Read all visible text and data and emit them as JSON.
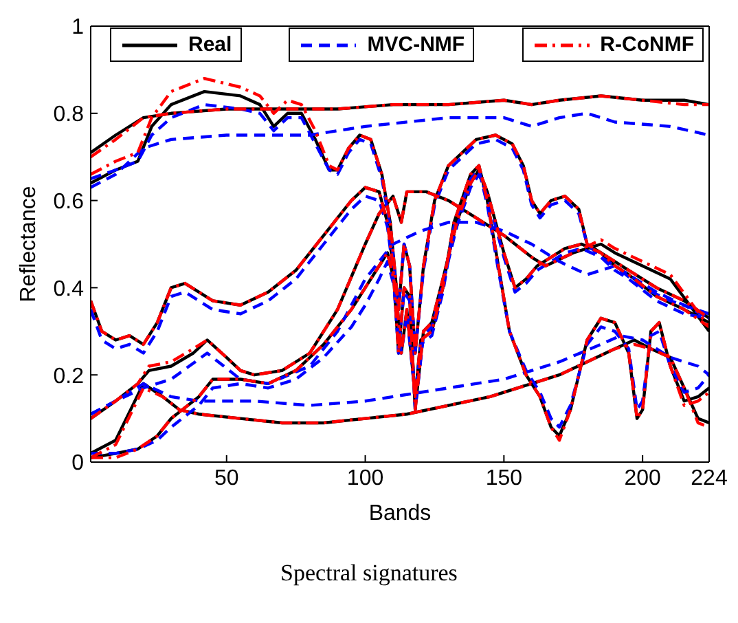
{
  "chart_data": {
    "type": "line",
    "title": "Spectral signatures",
    "xlabel": "Bands",
    "ylabel": "Reflectance",
    "xlim": [
      1,
      224
    ],
    "xticks": [
      50,
      100,
      150,
      200,
      224
    ],
    "ylim": [
      0,
      1
    ],
    "yticks": [
      0,
      0.2,
      0.4,
      0.6,
      0.8,
      1
    ],
    "grid": false,
    "legend": "top",
    "marker": "none",
    "series": [
      {
        "name": "Real",
        "color": "#000000",
        "line_style": "solid",
        "x": [
          1,
          10,
          20,
          30,
          50,
          70,
          90,
          110,
          130,
          150,
          160,
          170,
          185,
          200,
          215,
          224
        ],
        "values": [
          0.71,
          0.75,
          0.79,
          0.8,
          0.81,
          0.81,
          0.81,
          0.82,
          0.82,
          0.83,
          0.82,
          0.83,
          0.84,
          0.83,
          0.83,
          0.82
        ]
      },
      {
        "color": "#000000",
        "line_style": "solid",
        "x": [
          1,
          10,
          18,
          23,
          30,
          42,
          55,
          62,
          67,
          72,
          77,
          82,
          87,
          90,
          94,
          98,
          102,
          106,
          109,
          112,
          114,
          116,
          118,
          121,
          125,
          130,
          140,
          147,
          153,
          157,
          160,
          163,
          167,
          172,
          177,
          180,
          185,
          195,
          205,
          215,
          224
        ],
        "values": [
          0.64,
          0.67,
          0.69,
          0.77,
          0.82,
          0.85,
          0.84,
          0.82,
          0.77,
          0.8,
          0.8,
          0.74,
          0.67,
          0.67,
          0.72,
          0.75,
          0.74,
          0.66,
          0.55,
          0.35,
          0.5,
          0.45,
          0.25,
          0.45,
          0.6,
          0.68,
          0.74,
          0.75,
          0.73,
          0.68,
          0.6,
          0.57,
          0.6,
          0.61,
          0.58,
          0.5,
          0.48,
          0.44,
          0.4,
          0.37,
          0.33
        ]
      },
      {
        "color": "#000000",
        "line_style": "solid",
        "x": [
          1,
          5,
          10,
          15,
          20,
          25,
          30,
          35,
          45,
          55,
          65,
          75,
          85,
          95,
          100,
          105,
          108,
          110,
          112,
          114,
          116,
          118,
          121,
          124,
          128,
          133,
          138,
          141,
          144,
          150,
          154,
          158,
          162,
          167,
          172,
          178,
          185,
          190,
          195,
          205,
          215,
          224
        ],
        "values": [
          0.37,
          0.3,
          0.28,
          0.29,
          0.27,
          0.32,
          0.4,
          0.41,
          0.37,
          0.36,
          0.39,
          0.44,
          0.52,
          0.6,
          0.63,
          0.62,
          0.55,
          0.45,
          0.25,
          0.4,
          0.38,
          0.12,
          0.3,
          0.32,
          0.42,
          0.55,
          0.64,
          0.67,
          0.62,
          0.48,
          0.4,
          0.42,
          0.45,
          0.47,
          0.49,
          0.5,
          0.48,
          0.45,
          0.43,
          0.38,
          0.35,
          0.32
        ]
      },
      {
        "color": "#000000",
        "line_style": "solid",
        "x": [
          1,
          10,
          18,
          22,
          30,
          38,
          43,
          50,
          55,
          60,
          70,
          80,
          90,
          100,
          105,
          110,
          113,
          115,
          118,
          122,
          130,
          140,
          150,
          160,
          165,
          175,
          185,
          190,
          200,
          210,
          224
        ],
        "values": [
          0.1,
          0.14,
          0.18,
          0.21,
          0.22,
          0.25,
          0.28,
          0.24,
          0.21,
          0.2,
          0.21,
          0.25,
          0.35,
          0.5,
          0.57,
          0.61,
          0.55,
          0.62,
          0.62,
          0.62,
          0.6,
          0.56,
          0.52,
          0.47,
          0.45,
          0.48,
          0.5,
          0.48,
          0.45,
          0.42,
          0.3
        ]
      },
      {
        "color": "#000000",
        "line_style": "solid",
        "x": [
          1,
          10,
          18,
          25,
          30,
          40,
          45,
          55,
          65,
          75,
          85,
          95,
          100,
          105,
          108,
          111,
          113,
          115,
          118,
          120,
          124,
          128,
          132,
          138,
          141,
          144,
          148,
          152,
          158,
          163,
          167,
          170,
          174,
          180,
          185,
          190,
          195,
          198,
          200,
          203,
          206,
          210,
          215,
          220,
          224
        ],
        "values": [
          0.01,
          0.02,
          0.03,
          0.06,
          0.1,
          0.15,
          0.19,
          0.19,
          0.18,
          0.21,
          0.27,
          0.35,
          0.4,
          0.45,
          0.48,
          0.4,
          0.25,
          0.35,
          0.15,
          0.28,
          0.3,
          0.4,
          0.55,
          0.66,
          0.68,
          0.6,
          0.45,
          0.3,
          0.2,
          0.15,
          0.08,
          0.06,
          0.12,
          0.28,
          0.33,
          0.32,
          0.25,
          0.1,
          0.12,
          0.3,
          0.32,
          0.22,
          0.14,
          0.15,
          0.17
        ]
      },
      {
        "color": "#000000",
        "line_style": "solid",
        "x": [
          1,
          10,
          20,
          27,
          33,
          40,
          55,
          70,
          85,
          100,
          115,
          130,
          145,
          160,
          170,
          180,
          190,
          197,
          203,
          210,
          215,
          220,
          224
        ],
        "values": [
          0.02,
          0.05,
          0.18,
          0.15,
          0.12,
          0.11,
          0.1,
          0.09,
          0.09,
          0.1,
          0.11,
          0.13,
          0.15,
          0.18,
          0.2,
          0.23,
          0.26,
          0.28,
          0.26,
          0.24,
          0.17,
          0.1,
          0.09
        ]
      },
      {
        "name": "MVC-NMF",
        "color": "#0000ff",
        "line_style": "dashed",
        "x": [
          1,
          10,
          20,
          30,
          50,
          80,
          100,
          130,
          150,
          160,
          170,
          180,
          190,
          210,
          224
        ],
        "values": [
          0.63,
          0.66,
          0.72,
          0.74,
          0.75,
          0.75,
          0.77,
          0.79,
          0.79,
          0.77,
          0.79,
          0.8,
          0.78,
          0.77,
          0.75
        ]
      },
      {
        "color": "#0000ff",
        "line_style": "dashed",
        "x": [
          1,
          10,
          18,
          23,
          30,
          42,
          55,
          62,
          67,
          72,
          77,
          82,
          87,
          90,
          94,
          98,
          102,
          106,
          109,
          112,
          114,
          116,
          118,
          121,
          125,
          130,
          140,
          147,
          153,
          157,
          160,
          163,
          167,
          172,
          177,
          180,
          185,
          195,
          205,
          215,
          224
        ],
        "values": [
          0.65,
          0.67,
          0.69,
          0.75,
          0.79,
          0.82,
          0.81,
          0.8,
          0.76,
          0.79,
          0.79,
          0.73,
          0.67,
          0.66,
          0.71,
          0.74,
          0.73,
          0.65,
          0.54,
          0.35,
          0.5,
          0.45,
          0.25,
          0.44,
          0.59,
          0.67,
          0.73,
          0.74,
          0.72,
          0.67,
          0.59,
          0.56,
          0.59,
          0.6,
          0.57,
          0.5,
          0.47,
          0.43,
          0.39,
          0.36,
          0.33
        ]
      },
      {
        "color": "#0000ff",
        "line_style": "dashed",
        "x": [
          1,
          5,
          10,
          15,
          20,
          25,
          30,
          35,
          45,
          55,
          65,
          75,
          85,
          95,
          100,
          105,
          108,
          110,
          112,
          114,
          116,
          118,
          121,
          124,
          128,
          133,
          138,
          141,
          144,
          150,
          154,
          158,
          162,
          167,
          172,
          178,
          185,
          190,
          195,
          205,
          215,
          224
        ],
        "values": [
          0.35,
          0.28,
          0.26,
          0.27,
          0.25,
          0.3,
          0.38,
          0.39,
          0.35,
          0.34,
          0.37,
          0.42,
          0.5,
          0.58,
          0.61,
          0.6,
          0.54,
          0.44,
          0.25,
          0.39,
          0.37,
          0.12,
          0.29,
          0.31,
          0.41,
          0.54,
          0.63,
          0.66,
          0.61,
          0.47,
          0.39,
          0.41,
          0.44,
          0.46,
          0.48,
          0.49,
          0.47,
          0.44,
          0.42,
          0.37,
          0.34,
          0.33
        ]
      },
      {
        "color": "#0000ff",
        "line_style": "dashed",
        "x": [
          1,
          10,
          20,
          30,
          43,
          55,
          65,
          80,
          90,
          100,
          110,
          120,
          130,
          140,
          150,
          160,
          170,
          180,
          190,
          200,
          210,
          224
        ],
        "values": [
          0.11,
          0.14,
          0.17,
          0.19,
          0.25,
          0.19,
          0.18,
          0.22,
          0.3,
          0.42,
          0.5,
          0.53,
          0.55,
          0.55,
          0.53,
          0.5,
          0.46,
          0.43,
          0.45,
          0.4,
          0.37,
          0.34
        ]
      },
      {
        "color": "#0000ff",
        "line_style": "dashed",
        "x": [
          1,
          10,
          18,
          25,
          30,
          40,
          45,
          55,
          65,
          75,
          85,
          95,
          100,
          105,
          108,
          111,
          113,
          115,
          118,
          120,
          124,
          128,
          132,
          138,
          141,
          144,
          148,
          152,
          158,
          163,
          167,
          170,
          174,
          180,
          185,
          190,
          195,
          198,
          200,
          203,
          206,
          210,
          215,
          220,
          224
        ],
        "values": [
          0.02,
          0.02,
          0.03,
          0.05,
          0.08,
          0.13,
          0.17,
          0.18,
          0.17,
          0.19,
          0.24,
          0.31,
          0.36,
          0.42,
          0.46,
          0.39,
          0.25,
          0.34,
          0.15,
          0.27,
          0.29,
          0.39,
          0.54,
          0.65,
          0.67,
          0.59,
          0.44,
          0.3,
          0.21,
          0.16,
          0.1,
          0.08,
          0.13,
          0.27,
          0.31,
          0.3,
          0.26,
          0.12,
          0.14,
          0.29,
          0.3,
          0.22,
          0.16,
          0.17,
          0.2
        ]
      },
      {
        "color": "#0000ff",
        "line_style": "dashed",
        "x": [
          1,
          10,
          20,
          30,
          40,
          60,
          80,
          100,
          110,
          130,
          150,
          160,
          170,
          185,
          192,
          200,
          210,
          220,
          224
        ],
        "values": [
          0.11,
          0.14,
          0.18,
          0.15,
          0.14,
          0.14,
          0.13,
          0.14,
          0.15,
          0.17,
          0.19,
          0.21,
          0.23,
          0.27,
          0.29,
          0.28,
          0.24,
          0.22,
          0.2
        ]
      },
      {
        "name": "R-CoNMF",
        "color": "#ff0000",
        "line_style": "dashdot",
        "x": [
          1,
          10,
          20,
          30,
          50,
          70,
          90,
          110,
          130,
          150,
          160,
          170,
          185,
          200,
          215,
          224
        ],
        "values": [
          0.7,
          0.74,
          0.79,
          0.8,
          0.81,
          0.81,
          0.81,
          0.82,
          0.82,
          0.83,
          0.82,
          0.83,
          0.84,
          0.83,
          0.82,
          0.82
        ]
      },
      {
        "color": "#ff0000",
        "line_style": "dashdot",
        "x": [
          1,
          10,
          18,
          23,
          30,
          42,
          55,
          62,
          67,
          72,
          77,
          82,
          87,
          90,
          94,
          98,
          102,
          106,
          109,
          112,
          114,
          116,
          118,
          121,
          125,
          130,
          140,
          147,
          153,
          157,
          160,
          163,
          167,
          172,
          177,
          180,
          185,
          195,
          205,
          215,
          224
        ],
        "values": [
          0.66,
          0.69,
          0.71,
          0.79,
          0.85,
          0.88,
          0.86,
          0.84,
          0.8,
          0.83,
          0.82,
          0.76,
          0.68,
          0.67,
          0.72,
          0.75,
          0.74,
          0.66,
          0.55,
          0.35,
          0.5,
          0.45,
          0.25,
          0.45,
          0.6,
          0.68,
          0.74,
          0.75,
          0.73,
          0.68,
          0.6,
          0.57,
          0.6,
          0.61,
          0.58,
          0.5,
          0.48,
          0.44,
          0.4,
          0.37,
          0.33
        ]
      },
      {
        "color": "#ff0000",
        "line_style": "dashdot",
        "x": [
          1,
          5,
          10,
          15,
          20,
          25,
          30,
          35,
          45,
          55,
          65,
          75,
          85,
          95,
          100,
          105,
          108,
          110,
          112,
          114,
          116,
          118,
          121,
          124,
          128,
          133,
          138,
          141,
          144,
          150,
          154,
          158,
          162,
          167,
          172,
          178,
          185,
          190,
          195,
          205,
          215,
          224
        ],
        "values": [
          0.37,
          0.3,
          0.28,
          0.29,
          0.27,
          0.32,
          0.4,
          0.41,
          0.37,
          0.36,
          0.39,
          0.44,
          0.52,
          0.6,
          0.63,
          0.62,
          0.55,
          0.45,
          0.25,
          0.4,
          0.38,
          0.12,
          0.3,
          0.32,
          0.42,
          0.55,
          0.64,
          0.67,
          0.62,
          0.48,
          0.4,
          0.42,
          0.45,
          0.47,
          0.49,
          0.5,
          0.48,
          0.45,
          0.43,
          0.38,
          0.35,
          0.31
        ]
      },
      {
        "color": "#ff0000",
        "line_style": "dashdot",
        "x": [
          1,
          10,
          18,
          22,
          30,
          38,
          43,
          50,
          55,
          60,
          70,
          80,
          90,
          100,
          105,
          110,
          113,
          115,
          118,
          122,
          130,
          140,
          150,
          160,
          165,
          175,
          185,
          190,
          200,
          210,
          224
        ],
        "values": [
          0.1,
          0.14,
          0.18,
          0.22,
          0.23,
          0.26,
          0.28,
          0.24,
          0.21,
          0.2,
          0.21,
          0.25,
          0.35,
          0.5,
          0.57,
          0.61,
          0.55,
          0.62,
          0.62,
          0.62,
          0.6,
          0.56,
          0.52,
          0.47,
          0.45,
          0.48,
          0.51,
          0.49,
          0.46,
          0.43,
          0.31
        ]
      },
      {
        "color": "#ff0000",
        "line_style": "dashdot",
        "x": [
          1,
          10,
          18,
          25,
          30,
          40,
          45,
          55,
          65,
          75,
          85,
          95,
          100,
          105,
          108,
          111,
          113,
          115,
          118,
          120,
          124,
          128,
          132,
          138,
          141,
          144,
          148,
          152,
          158,
          163,
          167,
          170,
          174,
          180,
          185,
          190,
          195,
          198,
          200,
          203,
          206,
          210,
          215,
          220,
          224
        ],
        "values": [
          0.01,
          0.01,
          0.03,
          0.06,
          0.1,
          0.15,
          0.19,
          0.19,
          0.18,
          0.21,
          0.27,
          0.35,
          0.4,
          0.45,
          0.48,
          0.4,
          0.25,
          0.35,
          0.15,
          0.28,
          0.3,
          0.4,
          0.55,
          0.66,
          0.68,
          0.6,
          0.45,
          0.3,
          0.2,
          0.15,
          0.08,
          0.05,
          0.12,
          0.28,
          0.33,
          0.32,
          0.25,
          0.1,
          0.12,
          0.3,
          0.32,
          0.22,
          0.13,
          0.14,
          0.16
        ]
      },
      {
        "color": "#ff0000",
        "line_style": "dashdot",
        "x": [
          1,
          10,
          20,
          27,
          33,
          40,
          55,
          70,
          85,
          100,
          115,
          130,
          145,
          160,
          170,
          180,
          190,
          197,
          203,
          210,
          215,
          220,
          224
        ],
        "values": [
          0.01,
          0.04,
          0.17,
          0.15,
          0.12,
          0.11,
          0.1,
          0.09,
          0.09,
          0.1,
          0.11,
          0.13,
          0.15,
          0.18,
          0.2,
          0.23,
          0.26,
          0.27,
          0.26,
          0.24,
          0.17,
          0.09,
          0.08
        ]
      }
    ]
  }
}
